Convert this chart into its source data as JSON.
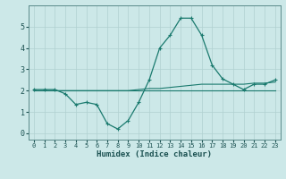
{
  "xlabel": "Humidex (Indice chaleur)",
  "x": [
    0,
    1,
    2,
    3,
    4,
    5,
    6,
    7,
    8,
    9,
    10,
    11,
    12,
    13,
    14,
    15,
    16,
    17,
    18,
    19,
    20,
    21,
    22,
    23
  ],
  "line1": [
    2.05,
    2.05,
    2.05,
    1.85,
    1.35,
    1.45,
    1.35,
    0.45,
    0.2,
    0.6,
    1.45,
    2.5,
    4.0,
    4.6,
    5.4,
    5.4,
    4.6,
    3.2,
    2.55,
    2.3,
    2.05,
    2.3,
    2.3,
    2.5
  ],
  "line2": [
    2.0,
    2.0,
    2.0,
    2.0,
    2.0,
    2.0,
    2.0,
    2.0,
    2.0,
    2.0,
    2.0,
    2.0,
    2.0,
    2.0,
    2.0,
    2.0,
    2.0,
    2.0,
    2.0,
    2.0,
    2.0,
    2.0,
    2.0,
    2.0
  ],
  "line3": [
    2.0,
    2.0,
    2.0,
    2.0,
    2.0,
    2.0,
    2.0,
    2.0,
    2.0,
    2.0,
    2.05,
    2.1,
    2.1,
    2.15,
    2.2,
    2.25,
    2.3,
    2.3,
    2.3,
    2.3,
    2.3,
    2.35,
    2.35,
    2.4
  ],
  "line_color": "#1a7a6e",
  "bg_color": "#cce8e8",
  "grid_color": "#b0d0d0",
  "ylim": [
    -0.3,
    6.0
  ],
  "xlim": [
    -0.5,
    23.5
  ],
  "yticks": [
    0,
    1,
    2,
    3,
    4,
    5
  ],
  "xticks": [
    0,
    1,
    2,
    3,
    4,
    5,
    6,
    7,
    8,
    9,
    10,
    11,
    12,
    13,
    14,
    15,
    16,
    17,
    18,
    19,
    20,
    21,
    22,
    23
  ]
}
